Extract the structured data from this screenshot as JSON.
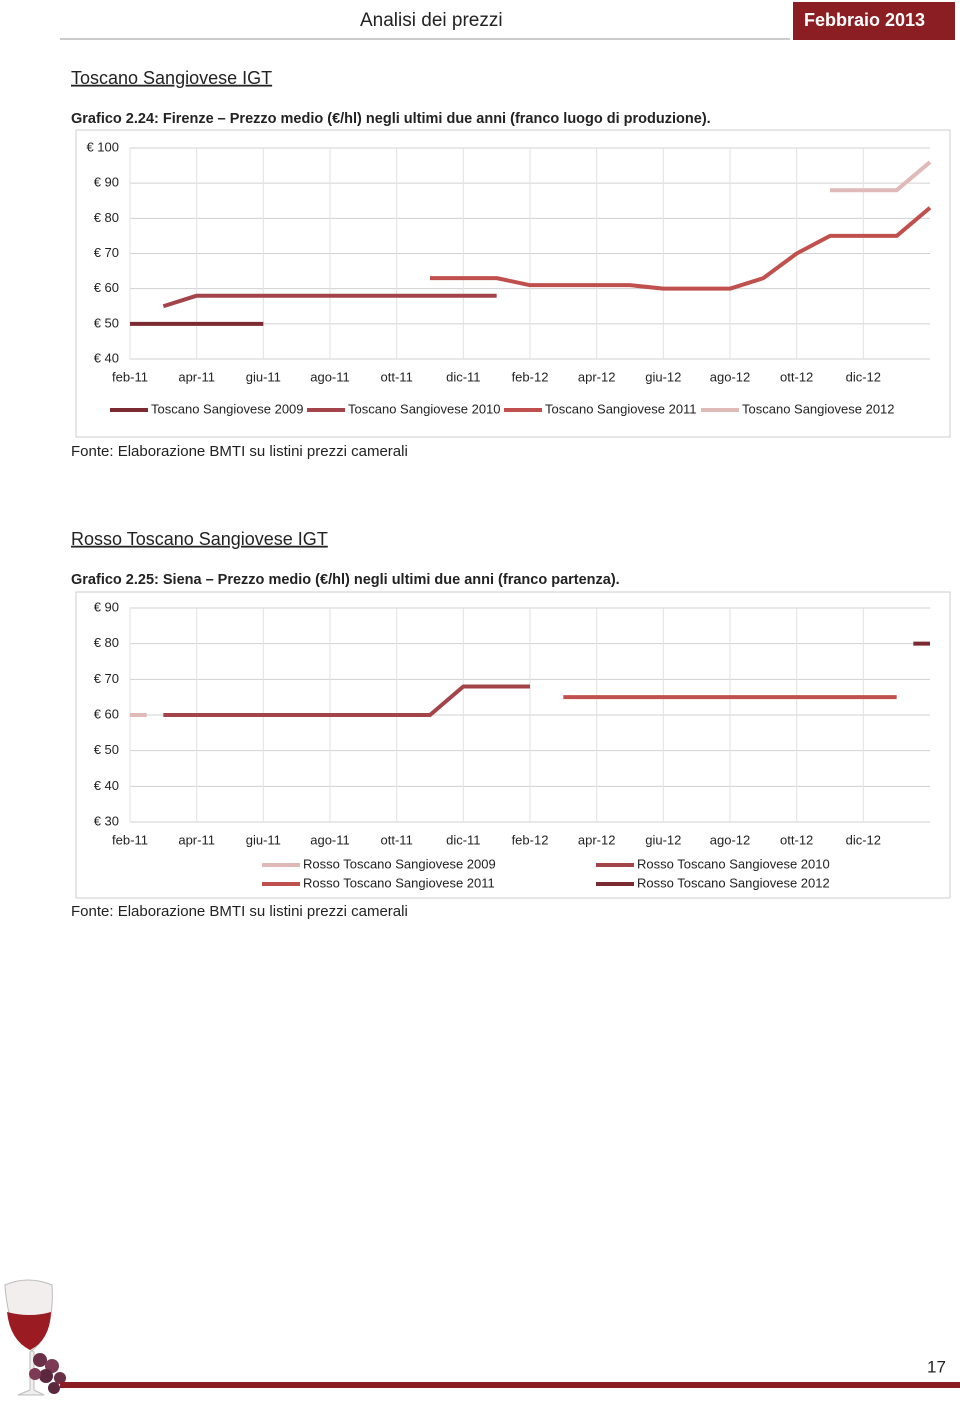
{
  "header": {
    "title": "Analisi dei prezzi",
    "date": "Febbraio 2013"
  },
  "sections": [
    {
      "title": "Toscano Sangiovese IGT",
      "caption": "Grafico 2.24: Firenze – Prezzo medio (€/hl) negli ultimi due anni (franco luogo di produzione).",
      "source": "Fonte: Elaborazione BMTI su listini prezzi camerali"
    },
    {
      "title": "Rosso Toscano Sangiovese IGT",
      "caption": "Grafico 2.25: Siena – Prezzo medio (€/hl) negli ultimi due anni (franco partenza).",
      "source": "Fonte: Elaborazione BMTI su listini prezzi camerali"
    }
  ],
  "page_number": "17",
  "chart_data": [
    {
      "type": "line",
      "grid": true,
      "legend": "bottom",
      "categories": [
        "feb-11",
        null,
        "apr-11",
        null,
        "giu-11",
        null,
        "ago-11",
        null,
        "ott-11",
        null,
        "dic-11",
        null,
        "feb-12",
        null,
        "apr-12",
        null,
        "giu-12",
        null,
        "ago-12",
        null,
        "ott-12",
        null,
        "dic-12",
        null,
        null
      ],
      "ylim": [
        40,
        100
      ],
      "yticks": [
        {
          "value": 40,
          "label": "€ 40"
        },
        {
          "value": 50,
          "label": "€ 50"
        },
        {
          "value": 60,
          "label": "€ 60"
        },
        {
          "value": 70,
          "label": "€ 70"
        },
        {
          "value": 80,
          "label": "€ 80"
        },
        {
          "value": 90,
          "label": "€ 90"
        },
        {
          "value": 100,
          "label": "€ 100"
        }
      ],
      "series": [
        {
          "name": "Toscano Sangiovese 2009",
          "color": "#7a2a30",
          "values": [
            50,
            50,
            50,
            50,
            50,
            null,
            null,
            null,
            null,
            null,
            null,
            null,
            null,
            null,
            null,
            null,
            null,
            null,
            null,
            null,
            null,
            null,
            null,
            null,
            null
          ]
        },
        {
          "name": "Toscano Sangiovese 2010",
          "color": "#a3444a",
          "values": [
            null,
            55,
            58,
            58,
            58,
            58,
            58,
            58,
            58,
            58,
            58,
            58,
            null,
            null,
            null,
            null,
            null,
            null,
            null,
            null,
            null,
            null,
            null,
            null,
            null
          ]
        },
        {
          "name": "Toscano Sangiovese 2011",
          "color": "#c0504d",
          "values": [
            null,
            null,
            null,
            null,
            null,
            null,
            null,
            null,
            null,
            63,
            63,
            63,
            61,
            61,
            61,
            61,
            60,
            60,
            60,
            63,
            70,
            75,
            75,
            75,
            83
          ]
        },
        {
          "name": "Toscano Sangiovese 2012",
          "color": "#e0b9b9",
          "values": [
            null,
            null,
            null,
            null,
            null,
            null,
            null,
            null,
            null,
            null,
            null,
            null,
            null,
            null,
            null,
            null,
            null,
            null,
            null,
            null,
            null,
            88,
            88,
            88,
            96
          ]
        }
      ]
    },
    {
      "type": "line",
      "grid": true,
      "legend": "bottom",
      "categories": [
        "feb-11",
        null,
        "apr-11",
        null,
        "giu-11",
        null,
        "ago-11",
        null,
        "ott-11",
        null,
        "dic-11",
        null,
        "feb-12",
        null,
        "apr-12",
        null,
        "giu-12",
        null,
        "ago-12",
        null,
        "ott-12",
        null,
        "dic-12",
        null,
        null
      ],
      "ylim": [
        30,
        90
      ],
      "yticks": [
        {
          "value": 30,
          "label": "€ 30"
        },
        {
          "value": 40,
          "label": "€ 40"
        },
        {
          "value": 50,
          "label": "€ 50"
        },
        {
          "value": 60,
          "label": "€ 60"
        },
        {
          "value": 70,
          "label": "€ 70"
        },
        {
          "value": 80,
          "label": "€ 80"
        },
        {
          "value": 90,
          "label": "€ 90"
        }
      ],
      "series": [
        {
          "name": "Rosso Toscano Sangiovese 2009",
          "color": "#e0b9b9",
          "values": [
            60,
            null,
            null,
            null,
            null,
            null,
            null,
            null,
            null,
            null,
            null,
            null,
            null,
            null,
            null,
            null,
            null,
            null,
            null,
            null,
            null,
            null,
            null,
            null,
            null
          ]
        },
        {
          "name": "Rosso Toscano Sangiovese 2010",
          "color": "#a3444a",
          "values": [
            null,
            60,
            60,
            60,
            60,
            60,
            60,
            60,
            60,
            60,
            68,
            68,
            68,
            null,
            null,
            null,
            null,
            null,
            null,
            null,
            null,
            null,
            null,
            null,
            null
          ]
        },
        {
          "name": "Rosso Toscano Sangiovese 2011",
          "color": "#c0504d",
          "values": [
            null,
            null,
            null,
            null,
            null,
            null,
            null,
            null,
            null,
            null,
            null,
            null,
            null,
            65,
            65,
            65,
            65,
            65,
            65,
            65,
            65,
            65,
            65,
            65,
            null
          ]
        },
        {
          "name": "Rosso Toscano Sangiovese 2012",
          "color": "#7a2a30",
          "values": [
            null,
            null,
            null,
            null,
            null,
            null,
            null,
            null,
            null,
            null,
            null,
            null,
            null,
            null,
            null,
            null,
            null,
            null,
            null,
            null,
            null,
            null,
            null,
            null,
            80
          ]
        }
      ]
    }
  ]
}
